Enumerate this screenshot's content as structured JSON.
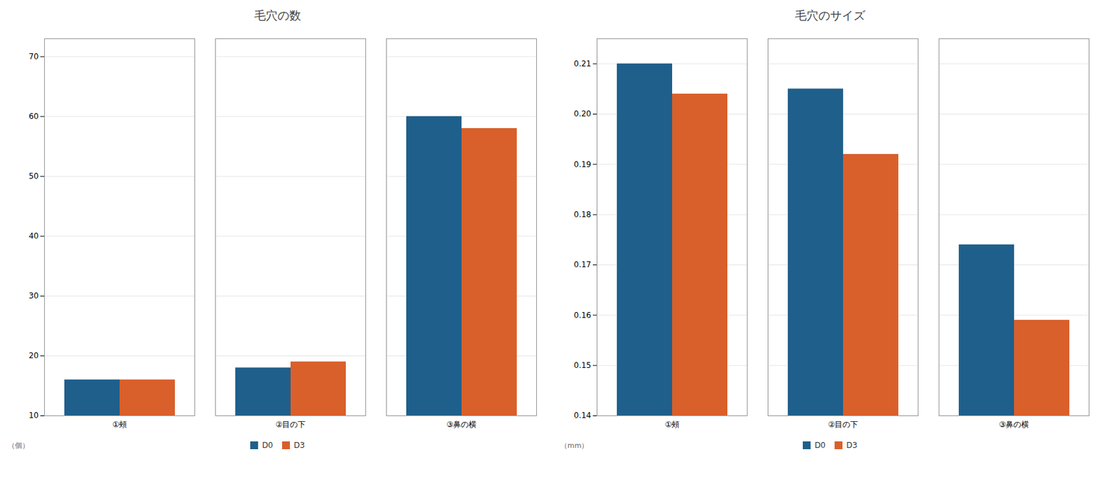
{
  "chart_data": [
    {
      "type": "bar",
      "title": "毛穴の数",
      "categories": [
        "①頰",
        "②目の下",
        "③鼻の横"
      ],
      "series": [
        {
          "name": "D0",
          "color": "#1f5f8b",
          "values": [
            16,
            18,
            60
          ]
        },
        {
          "name": "D3",
          "color": "#d95f2b",
          "values": [
            16,
            19,
            58
          ]
        }
      ],
      "ylabel": "（個）",
      "ylim": [
        10,
        73
      ],
      "yticks": [
        10,
        20,
        30,
        40,
        50,
        60,
        70
      ],
      "grid": true,
      "legend": "bottom"
    },
    {
      "type": "bar",
      "title": "毛穴のサイズ",
      "categories": [
        "①頰",
        "②目の下",
        "③鼻の横"
      ],
      "series": [
        {
          "name": "D0",
          "color": "#1f5f8b",
          "values": [
            0.21,
            0.205,
            0.174
          ]
        },
        {
          "name": "D3",
          "color": "#d95f2b",
          "values": [
            0.204,
            0.192,
            0.159
          ]
        }
      ],
      "ylabel": "（mm）",
      "ylim": [
        0.14,
        0.215
      ],
      "yticks": [
        0.14,
        0.15,
        0.16,
        0.17,
        0.18,
        0.19,
        {
          "value": 0.2,
          "label": "0.20"
        },
        0.21
      ],
      "grid": true,
      "legend": "bottom"
    }
  ]
}
